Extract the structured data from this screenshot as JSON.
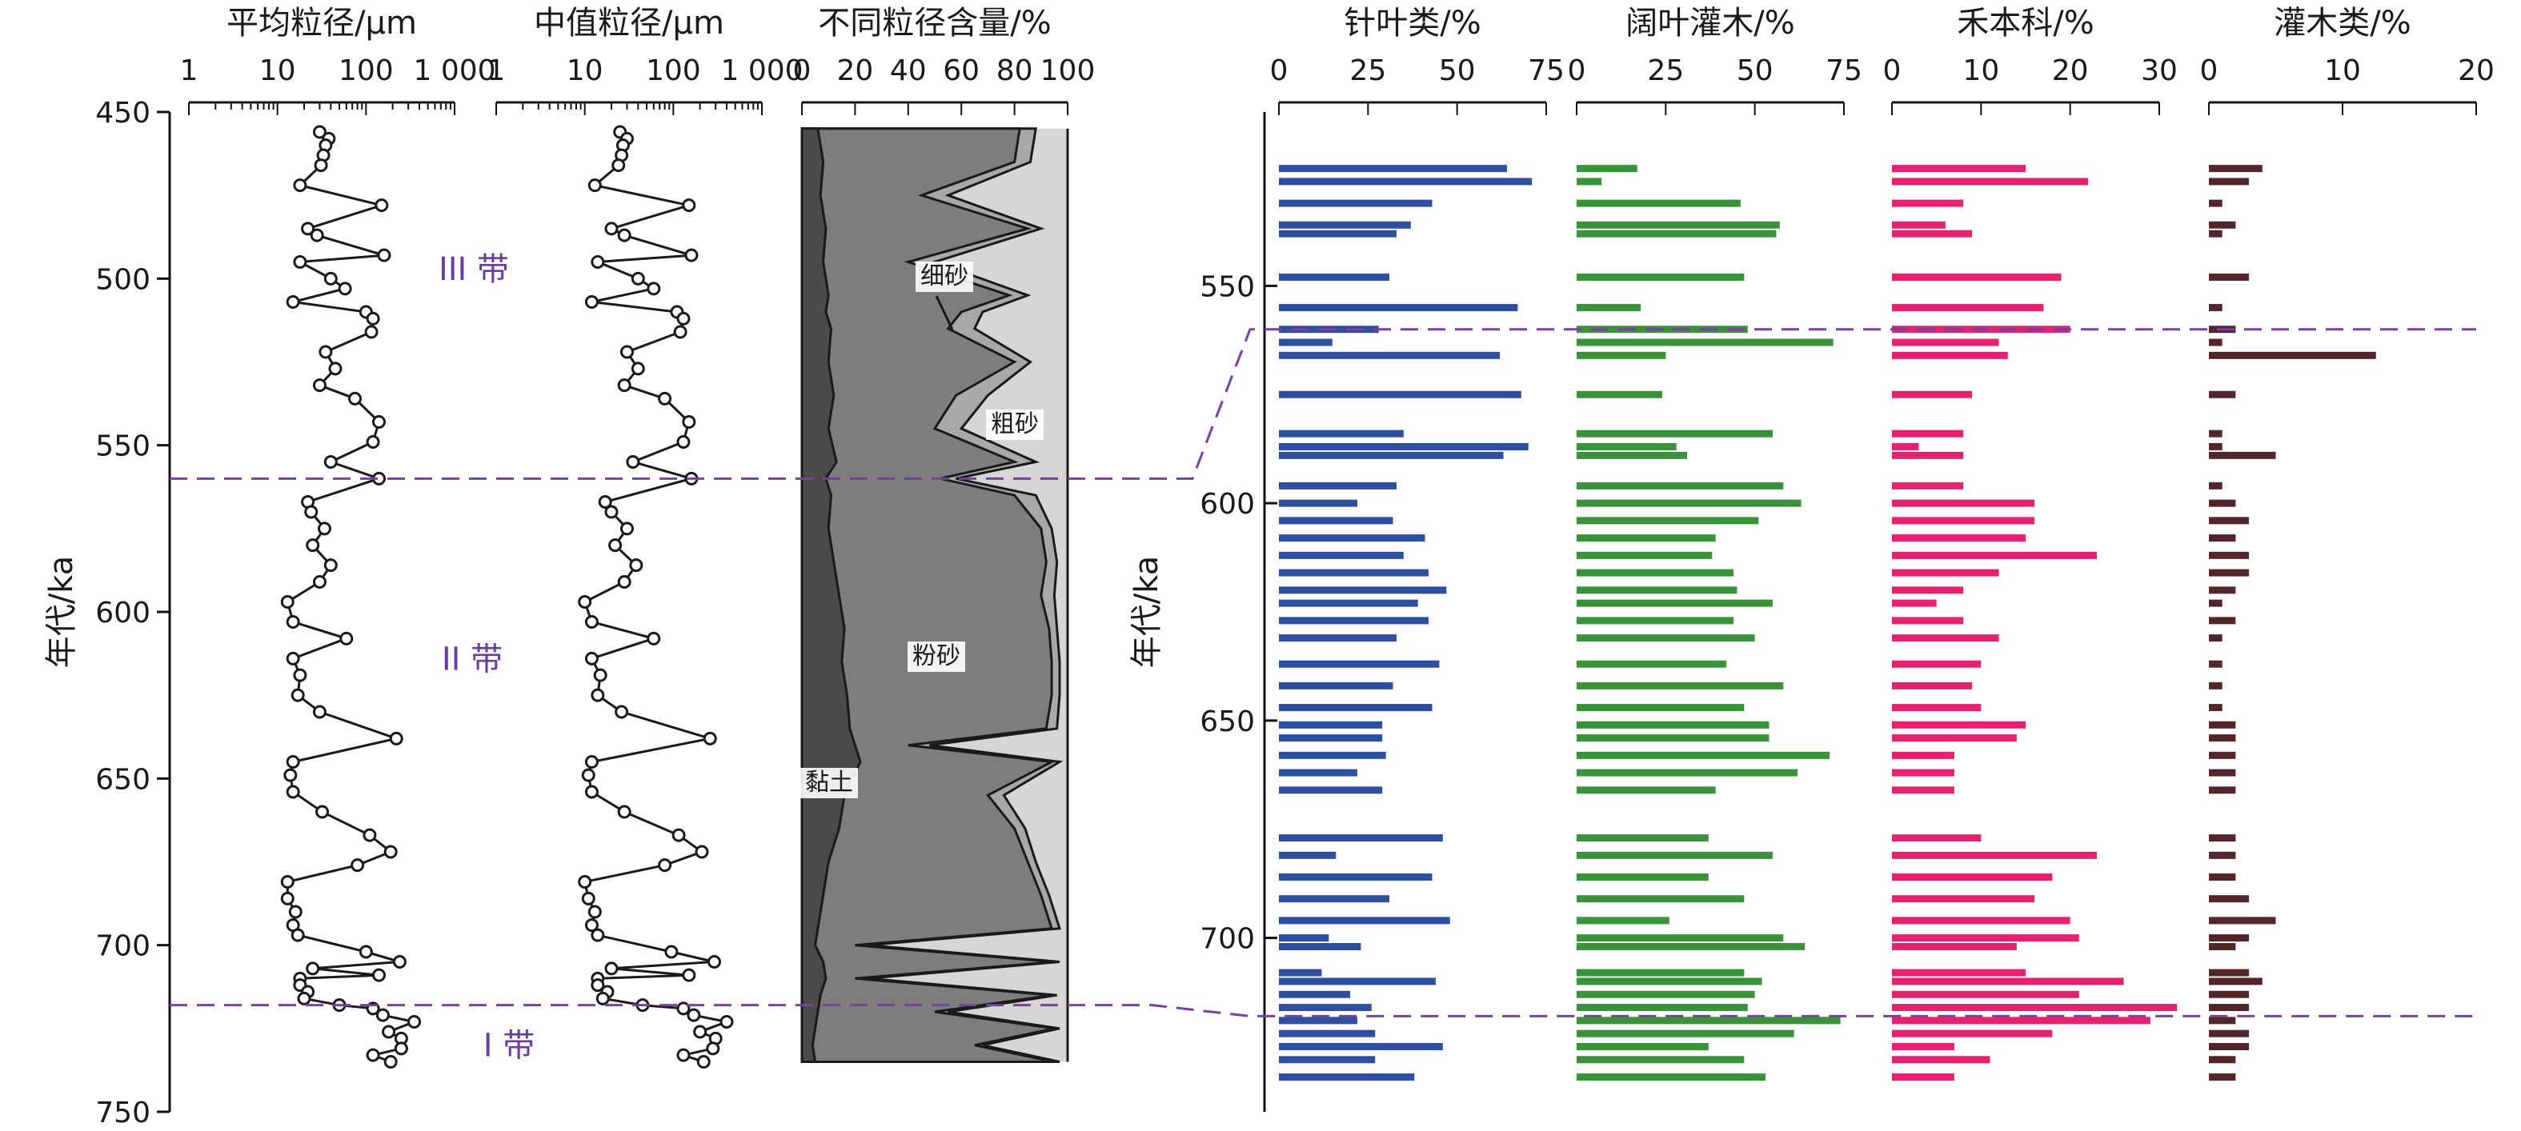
{
  "chart_data": [
    {
      "type": "line",
      "title": "平均粒径/μm",
      "ylabel": "年代/ka",
      "ylim": [
        450,
        750
      ],
      "xscale": "log",
      "xlim": [
        1,
        1000
      ],
      "xtick_labels": [
        "1",
        "10",
        "100",
        "1 000"
      ],
      "yticks": [
        450,
        500,
        550,
        600,
        650,
        700,
        750
      ],
      "age": [
        456,
        458,
        460,
        463,
        466,
        472,
        478,
        485,
        487,
        493,
        495,
        500,
        503,
        507,
        510,
        512,
        516,
        522,
        527,
        532,
        536,
        543,
        549,
        555,
        560,
        567,
        570,
        575,
        580,
        586,
        591,
        597,
        603,
        608,
        614,
        619,
        625,
        630,
        638,
        645,
        649,
        654,
        660,
        667,
        672,
        676,
        681,
        686,
        690,
        694,
        697,
        702,
        705,
        707,
        709,
        710,
        712,
        714,
        716,
        718,
        719,
        721,
        723,
        726,
        728,
        731,
        733,
        735
      ],
      "values": [
        30,
        38,
        35,
        33,
        31,
        18,
        150,
        22,
        28,
        160,
        18,
        40,
        58,
        15,
        100,
        120,
        115,
        35,
        45,
        30,
        75,
        140,
        120,
        40,
        140,
        22,
        24,
        34,
        25,
        40,
        30,
        13,
        15,
        60,
        15,
        18,
        17,
        30,
        220,
        15,
        14,
        15,
        32,
        110,
        190,
        80,
        13,
        13,
        16,
        15,
        17,
        100,
        240,
        25,
        140,
        18,
        18,
        22,
        20,
        50,
        120,
        155,
        350,
        180,
        250,
        250,
        120,
        190
      ]
    },
    {
      "type": "line",
      "title": "中值粒径/μm",
      "ylim": [
        450,
        750
      ],
      "xscale": "log",
      "xlim": [
        1,
        1000
      ],
      "xtick_labels": [
        "1",
        "10",
        "100",
        "1 000"
      ],
      "yticks": [
        450,
        500,
        550,
        600,
        650,
        700,
        750
      ],
      "age": [
        456,
        458,
        460,
        463,
        466,
        472,
        478,
        485,
        487,
        493,
        495,
        500,
        503,
        507,
        510,
        512,
        516,
        522,
        527,
        532,
        536,
        543,
        549,
        555,
        560,
        567,
        570,
        575,
        580,
        586,
        591,
        597,
        603,
        608,
        614,
        619,
        625,
        630,
        638,
        645,
        649,
        654,
        660,
        667,
        672,
        676,
        681,
        686,
        690,
        694,
        697,
        702,
        705,
        707,
        709,
        710,
        712,
        714,
        716,
        718,
        719,
        721,
        723,
        726,
        728,
        731,
        733,
        735
      ],
      "values": [
        25,
        30,
        27,
        26,
        24,
        13,
        150,
        20,
        28,
        160,
        14,
        40,
        60,
        12,
        110,
        130,
        120,
        30,
        40,
        28,
        80,
        150,
        130,
        35,
        160,
        17,
        20,
        30,
        22,
        38,
        28,
        10,
        12,
        60,
        12,
        15,
        14,
        26,
        260,
        12,
        11,
        12,
        28,
        115,
        210,
        80,
        10,
        11,
        13,
        12,
        14,
        95,
        290,
        20,
        150,
        14,
        14,
        18,
        16,
        45,
        130,
        170,
        400,
        200,
        300,
        280,
        130,
        220
      ]
    },
    {
      "type": "area",
      "title": "不同粒径含量/%",
      "xlim": [
        0,
        100
      ],
      "xticks": [
        0,
        20,
        40,
        60,
        80,
        100
      ],
      "stacking": "cumulative percent (left to right)",
      "ylim": [
        450,
        750
      ],
      "age": [
        455,
        465,
        475,
        485,
        495,
        505,
        510,
        515,
        525,
        535,
        545,
        555,
        560,
        565,
        575,
        585,
        595,
        605,
        615,
        625,
        635,
        640,
        645,
        655,
        665,
        675,
        685,
        695,
        700,
        705,
        710,
        715,
        720,
        725,
        730,
        735
      ],
      "series": [
        {
          "name": "黏土",
          "values": [
            6,
            8,
            7,
            9,
            8,
            10,
            9,
            11,
            10,
            12,
            10,
            13,
            9,
            11,
            10,
            12,
            14,
            16,
            15,
            17,
            18,
            20,
            22,
            16,
            14,
            10,
            8,
            6,
            5,
            8,
            9,
            7,
            6,
            5,
            4,
            5
          ]
        },
        {
          "name": "粉砂",
          "values": [
            82,
            80,
            45,
            85,
            40,
            78,
            60,
            55,
            80,
            58,
            50,
            80,
            52,
            80,
            90,
            92,
            90,
            93,
            94,
            94,
            92,
            40,
            94,
            70,
            80,
            85,
            90,
            94,
            20,
            95,
            20,
            94,
            50,
            95,
            65,
            95
          ]
        },
        {
          "name": "细砂",
          "values": [
            88,
            86,
            55,
            90,
            50,
            85,
            68,
            65,
            86,
            70,
            60,
            88,
            58,
            88,
            94,
            96,
            95,
            96,
            97,
            97,
            96,
            48,
            97,
            76,
            84,
            88,
            93,
            97,
            25,
            97,
            25,
            96,
            55,
            97,
            68,
            97
          ]
        }
      ],
      "annotations": [
        "细砂",
        "粗砂",
        "粉砂",
        "黏土"
      ]
    },
    {
      "type": "bar",
      "orientation": "horizontal",
      "title": "针叶类/%",
      "ylabel": "年代/ka",
      "xlim": [
        0,
        75
      ],
      "xticks": [
        0,
        25,
        50,
        75
      ],
      "ylim": [
        510,
        740
      ],
      "yticks": [
        550,
        600,
        650,
        700
      ],
      "color": "#2e4fa0",
      "age": [
        523,
        526,
        531,
        536,
        538,
        548,
        555,
        560,
        563,
        566,
        575,
        584,
        587,
        589,
        596,
        600,
        604,
        608,
        612,
        616,
        620,
        623,
        627,
        631,
        637,
        642,
        647,
        651,
        654,
        658,
        662,
        666,
        677,
        681,
        686,
        691,
        696,
        700,
        702,
        708,
        710,
        713,
        716,
        719,
        722,
        725,
        728,
        732
      ],
      "values": [
        64,
        71,
        43,
        37,
        33,
        31,
        67,
        28,
        15,
        62,
        68,
        35,
        70,
        63,
        33,
        22,
        32,
        41,
        35,
        42,
        47,
        39,
        42,
        33,
        45,
        32,
        43,
        29,
        29,
        30,
        22,
        29,
        46,
        16,
        43,
        31,
        48,
        14,
        23,
        12,
        44,
        20,
        26,
        22,
        27,
        46,
        27,
        38
      ]
    },
    {
      "type": "bar",
      "orientation": "horizontal",
      "title": "阔叶灌木/%",
      "xlim": [
        0,
        75
      ],
      "xticks": [
        0,
        25,
        50,
        75
      ],
      "ylim": [
        510,
        740
      ],
      "yticks": [
        550,
        600,
        650,
        700
      ],
      "color": "#3a923a",
      "age": [
        523,
        526,
        531,
        536,
        538,
        548,
        555,
        560,
        563,
        566,
        575,
        584,
        587,
        589,
        596,
        600,
        604,
        608,
        612,
        616,
        620,
        623,
        627,
        631,
        637,
        642,
        647,
        651,
        654,
        658,
        662,
        666,
        677,
        681,
        686,
        691,
        696,
        700,
        702,
        708,
        710,
        713,
        716,
        719,
        722,
        725,
        728,
        732
      ],
      "values": [
        17,
        7,
        46,
        57,
        56,
        47,
        18,
        48,
        72,
        25,
        24,
        55,
        28,
        31,
        58,
        63,
        51,
        39,
        38,
        44,
        45,
        55,
        44,
        50,
        42,
        58,
        47,
        54,
        54,
        71,
        62,
        39,
        37,
        55,
        37,
        47,
        26,
        58,
        64,
        47,
        52,
        50,
        48,
        74,
        61,
        37,
        47,
        53
      ]
    },
    {
      "type": "bar",
      "orientation": "horizontal",
      "title": "禾本科/%",
      "xlim": [
        0,
        30
      ],
      "xticks": [
        0,
        10,
        20,
        30
      ],
      "ylim": [
        510,
        740
      ],
      "yticks": [
        550,
        600,
        650,
        700
      ],
      "color": "#e5226f",
      "age": [
        523,
        526,
        531,
        536,
        538,
        548,
        555,
        560,
        563,
        566,
        575,
        584,
        587,
        589,
        596,
        600,
        604,
        608,
        612,
        616,
        620,
        623,
        627,
        631,
        637,
        642,
        647,
        651,
        654,
        658,
        662,
        666,
        677,
        681,
        686,
        691,
        696,
        700,
        702,
        708,
        710,
        713,
        716,
        719,
        722,
        725,
        728,
        732
      ],
      "values": [
        15,
        22,
        8,
        6,
        9,
        19,
        17,
        20,
        12,
        13,
        9,
        8,
        3,
        8,
        8,
        16,
        16,
        15,
        23,
        12,
        8,
        5,
        8,
        12,
        10,
        9,
        10,
        15,
        14,
        7,
        7,
        7,
        10,
        23,
        18,
        16,
        20,
        21,
        14,
        15,
        26,
        21,
        32,
        29,
        18,
        7,
        11,
        7
      ]
    },
    {
      "type": "bar",
      "orientation": "horizontal",
      "title": "灌木类/%",
      "xlim": [
        0,
        20
      ],
      "xticks": [
        0,
        10,
        20
      ],
      "ylim": [
        510,
        740
      ],
      "yticks": [
        550,
        600,
        650,
        700
      ],
      "color": "#53262b",
      "age": [
        523,
        526,
        531,
        536,
        538,
        548,
        555,
        560,
        563,
        566,
        575,
        584,
        587,
        589,
        596,
        600,
        604,
        608,
        612,
        616,
        620,
        623,
        627,
        631,
        637,
        642,
        647,
        651,
        654,
        658,
        662,
        666,
        677,
        681,
        686,
        691,
        696,
        700,
        702,
        708,
        710,
        713,
        716,
        719,
        722,
        725,
        728,
        732
      ],
      "values": [
        4,
        3,
        1,
        2,
        1,
        3,
        1,
        2,
        1,
        12.5,
        2,
        1,
        1,
        5,
        1,
        2,
        3,
        2,
        3,
        3,
        2,
        1,
        2,
        1,
        1,
        1,
        1,
        2,
        2,
        2,
        2,
        2,
        2,
        2,
        2,
        3,
        5,
        3,
        2,
        3,
        4,
        3,
        3,
        2,
        3,
        3,
        2,
        2
      ]
    }
  ],
  "zones": [
    {
      "label": "III 带",
      "age": 497
    },
    {
      "label": "II 带",
      "age": 614
    },
    {
      "label": "I 带",
      "age": 730
    }
  ],
  "zone_boundaries": [
    560,
    718
  ],
  "segment_labels": {
    "fine_sand": "细砂",
    "coarse_sand": "粗砂",
    "silt": "粉砂",
    "clay": "黏土"
  },
  "colors": {
    "zone_line": "#7b3fa0",
    "clay": "#4a4a4a",
    "silt": "#7d7d7d",
    "fine_sand": "#a8a8a8",
    "coarse_sand": "#d6d6d6"
  }
}
